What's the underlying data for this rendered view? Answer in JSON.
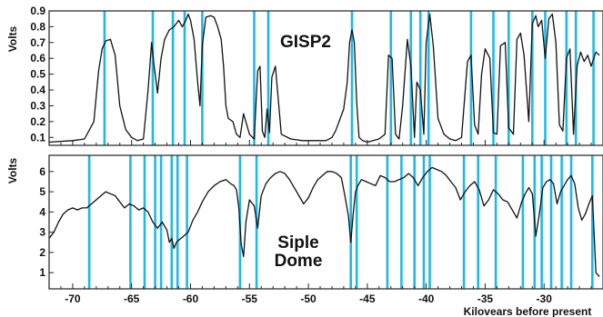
{
  "chart_data": [
    {
      "type": "line",
      "title": "GISP2",
      "ylabel": "Volts",
      "xlim": [
        -72,
        -25
      ],
      "ylim": [
        0.05,
        0.9
      ],
      "yticks": [
        0.1,
        0.2,
        0.3,
        0.4,
        0.5,
        0.6,
        0.7,
        0.8,
        0.9
      ],
      "grid": false,
      "series": [
        {
          "x": [
            -72,
            -70,
            -69,
            -68.2,
            -67.8,
            -67.5,
            -67.2,
            -66.8,
            -66.4,
            -66,
            -65.5,
            -65,
            -64.5,
            -64,
            -63.6,
            -63.3,
            -63.1,
            -62.8,
            -62.5,
            -62.2,
            -61.8,
            -61.4,
            -61.0,
            -60.7,
            -60.4,
            -60.2,
            -60.0,
            -59.7,
            -59.4,
            -59.2,
            -59.0,
            -58.7,
            -58.3,
            -58.0,
            -57.7,
            -57.4,
            -57.2,
            -57.0,
            -56.8,
            -56.4,
            -56.1,
            -55.8,
            -55.5,
            -55.0,
            -54.6,
            -54.3,
            -54.1,
            -53.9,
            -53.7,
            -53.5,
            -53.3,
            -53.1,
            -52.8,
            -52.3,
            -51.5,
            -50.5,
            -49.5,
            -48.5,
            -48.0,
            -47.7,
            -47.4,
            -47.0,
            -46.7,
            -46.5,
            -46.3,
            -46.1,
            -45.9,
            -45.7,
            -45.4,
            -45.0,
            -44.5,
            -44.0,
            -43.5,
            -43.2,
            -42.9,
            -42.6,
            -42.3,
            -42.0,
            -41.6,
            -41.3,
            -41.0,
            -40.8,
            -40.5,
            -40.2,
            -40.0,
            -39.7,
            -39.4,
            -39.0,
            -38.5,
            -38.0,
            -37.5,
            -37.0,
            -36.5,
            -36.2,
            -35.9,
            -35.6,
            -35.3,
            -35.0,
            -34.6,
            -34.3,
            -34.0,
            -33.7,
            -33.3,
            -33.0,
            -32.6,
            -32.3,
            -32.0,
            -31.7,
            -31.3,
            -31.0,
            -30.7,
            -30.5,
            -30.2,
            -29.9,
            -29.6,
            -29.3,
            -29.0,
            -28.7,
            -28.4,
            -28.1,
            -27.8,
            -27.5,
            -27.2,
            -26.9,
            -26.6,
            -26.3,
            -26.0,
            -25.6,
            -25.3
          ],
          "y": [
            0.07,
            0.08,
            0.09,
            0.2,
            0.52,
            0.66,
            0.71,
            0.72,
            0.62,
            0.3,
            0.15,
            0.1,
            0.08,
            0.09,
            0.4,
            0.7,
            0.56,
            0.38,
            0.6,
            0.72,
            0.78,
            0.8,
            0.84,
            0.8,
            0.84,
            0.88,
            0.84,
            0.72,
            0.45,
            0.3,
            0.68,
            0.86,
            0.87,
            0.86,
            0.8,
            0.72,
            0.55,
            0.3,
            0.22,
            0.2,
            0.12,
            0.1,
            0.25,
            0.12,
            0.09,
            0.52,
            0.55,
            0.14,
            0.1,
            0.28,
            0.13,
            0.48,
            0.55,
            0.12,
            0.09,
            0.08,
            0.08,
            0.08,
            0.1,
            0.14,
            0.2,
            0.28,
            0.45,
            0.7,
            0.78,
            0.7,
            0.32,
            0.1,
            0.08,
            0.07,
            0.08,
            0.09,
            0.12,
            0.62,
            0.6,
            0.12,
            0.09,
            0.3,
            0.72,
            0.55,
            0.1,
            0.45,
            0.4,
            0.12,
            0.7,
            0.88,
            0.68,
            0.22,
            0.12,
            0.09,
            0.08,
            0.1,
            0.58,
            0.62,
            0.18,
            0.12,
            0.5,
            0.66,
            0.6,
            0.13,
            0.12,
            0.68,
            0.7,
            0.16,
            0.12,
            0.72,
            0.76,
            0.62,
            0.2,
            0.82,
            0.87,
            0.8,
            0.84,
            0.6,
            0.85,
            0.88,
            0.7,
            0.18,
            0.14,
            0.6,
            0.66,
            0.12,
            0.55,
            0.64,
            0.58,
            0.62,
            0.55,
            0.64,
            0.62
          ]
        }
      ],
      "markers_x": [
        -67.3,
        -63.2,
        -61.5,
        -60.5,
        -59.0,
        -54.6,
        -53.4,
        -46.3,
        -43.0,
        -41.3,
        -40.5,
        -39.8,
        -36.2,
        -34.3,
        -33.0,
        -31.0,
        -29.9,
        -28.1,
        -27.3,
        -25.8
      ]
    },
    {
      "type": "line",
      "title": "Siple\nDome",
      "ylabel": "Volts",
      "xlabel": "Kilovears before present",
      "xlim": [
        -72,
        -25
      ],
      "ylim": [
        0.2,
        6.8
      ],
      "yticks": [
        1,
        2,
        3,
        4,
        5,
        6
      ],
      "xticks": [
        -70,
        -65,
        -60,
        -55,
        -50,
        -45,
        -40,
        -35,
        -30
      ],
      "grid": false,
      "series": [
        {
          "x": [
            -72,
            -71.6,
            -71.2,
            -70.8,
            -70.4,
            -70.0,
            -69.6,
            -69.2,
            -68.8,
            -68.4,
            -68.0,
            -67.6,
            -67.2,
            -66.8,
            -66.4,
            -66.0,
            -65.6,
            -65.2,
            -64.8,
            -64.4,
            -64.0,
            -63.6,
            -63.2,
            -62.8,
            -62.4,
            -62.0,
            -61.8,
            -61.6,
            -61.4,
            -61.2,
            -61.0,
            -60.6,
            -60.2,
            -59.8,
            -59.4,
            -59.0,
            -58.5,
            -58.0,
            -57.5,
            -57.0,
            -56.6,
            -56.3,
            -56.1,
            -55.9,
            -55.7,
            -55.5,
            -55.3,
            -55.0,
            -54.6,
            -54.3,
            -54.0,
            -53.6,
            -53.2,
            -52.8,
            -52.4,
            -52.0,
            -51.6,
            -51.2,
            -50.8,
            -50.4,
            -50.0,
            -49.6,
            -49.2,
            -48.8,
            -48.4,
            -48.0,
            -47.6,
            -47.2,
            -46.9,
            -46.6,
            -46.4,
            -46.2,
            -46.0,
            -45.8,
            -45.5,
            -45.1,
            -44.7,
            -44.3,
            -43.9,
            -43.5,
            -43.1,
            -42.7,
            -42.3,
            -41.9,
            -41.5,
            -41.1,
            -40.7,
            -40.3,
            -39.9,
            -39.5,
            -39.1,
            -38.7,
            -38.3,
            -37.9,
            -37.5,
            -37.1,
            -36.7,
            -36.3,
            -35.9,
            -35.5,
            -35.1,
            -34.7,
            -34.3,
            -33.9,
            -33.5,
            -33.1,
            -32.7,
            -32.3,
            -31.9,
            -31.6,
            -31.3,
            -31.0,
            -30.7,
            -30.4,
            -30.1,
            -29.8,
            -29.5,
            -29.2,
            -28.9,
            -28.6,
            -28.3,
            -28.0,
            -27.7,
            -27.4,
            -27.1,
            -26.8,
            -26.5,
            -26.2,
            -25.9,
            -25.6,
            -25.3
          ],
          "y": [
            2.7,
            3.0,
            3.5,
            3.9,
            4.1,
            4.2,
            4.1,
            4.2,
            4.2,
            4.4,
            4.6,
            4.8,
            5.0,
            4.9,
            4.8,
            4.5,
            4.2,
            4.4,
            4.3,
            4.1,
            4.2,
            4.0,
            3.5,
            3.2,
            3.5,
            3.1,
            2.5,
            2.7,
            2.2,
            2.5,
            2.6,
            2.8,
            3.0,
            3.6,
            4.0,
            4.5,
            5.0,
            5.3,
            5.5,
            5.6,
            5.4,
            5.3,
            5.1,
            4.2,
            2.4,
            1.8,
            3.5,
            4.6,
            4.3,
            3.2,
            4.8,
            5.4,
            5.7,
            5.9,
            6.0,
            5.9,
            5.6,
            5.2,
            4.8,
            4.4,
            4.7,
            5.2,
            5.6,
            5.8,
            6.0,
            6.0,
            5.9,
            5.7,
            4.8,
            3.8,
            2.5,
            3.9,
            5.0,
            5.3,
            5.6,
            5.5,
            5.4,
            5.3,
            5.8,
            5.7,
            5.5,
            5.5,
            5.6,
            5.7,
            5.9,
            5.7,
            5.3,
            5.7,
            6.0,
            6.2,
            6.1,
            6.0,
            5.8,
            5.5,
            5.2,
            4.6,
            5.0,
            5.3,
            5.5,
            5.1,
            4.3,
            4.6,
            5.1,
            4.9,
            4.6,
            4.5,
            4.1,
            3.7,
            4.5,
            4.9,
            5.2,
            4.9,
            2.8,
            3.9,
            5.2,
            5.5,
            5.6,
            5.4,
            4.4,
            5.0,
            5.3,
            5.6,
            5.8,
            5.4,
            4.2,
            3.6,
            3.9,
            4.4,
            4.8,
            1.0,
            0.8
          ]
        }
      ],
      "markers_x": [
        -68.6,
        -65.1,
        -63.9,
        -63.0,
        -62.5,
        -61.6,
        -61.1,
        -60.3,
        -55.8,
        -54.4,
        -46.4,
        -45.9,
        -43.3,
        -42.1,
        -41.0,
        -40.2,
        -39.7,
        -36.8,
        -35.6,
        -34.1,
        -31.8,
        -30.8,
        -30.2,
        -29.4,
        -28.5,
        -27.7,
        -25.9
      ]
    }
  ],
  "colors": {
    "marker": "#1fb8ea",
    "line": "#111111",
    "frame": "#222222",
    "background": "#ffffff"
  }
}
